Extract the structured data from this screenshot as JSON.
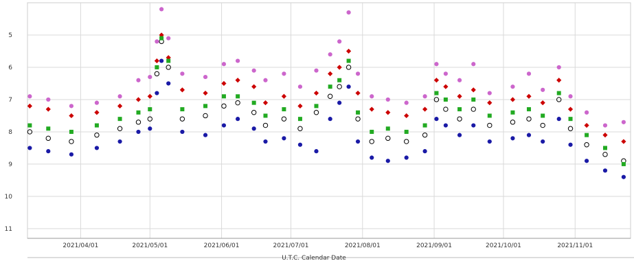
{
  "chart_data": {
    "type": "scatter",
    "title": "",
    "xlabel": "U.T.C. Calendar Date",
    "ylabel": "",
    "y_inverted": true,
    "ylim": [
      11.3,
      4.0
    ],
    "xlim": [
      "2021-03-09",
      "2021-11-25"
    ],
    "grid": true,
    "x_ticks": [
      "2021/04/01",
      "2021/05/01",
      "2021/06/01",
      "2021/07/01",
      "2021/08/01",
      "2021/09/01",
      "2021/10/01",
      "2021/11/01"
    ],
    "y_ticks": [
      5,
      6,
      7,
      8,
      9,
      10,
      11
    ],
    "series": [
      {
        "color": "#cc66cc",
        "marker": "circle-filled",
        "points": [
          [
            "2021-03-10",
            6.9
          ],
          [
            "2021-03-18",
            7.0
          ],
          [
            "2021-03-28",
            7.2
          ],
          [
            "2021-04-08",
            7.1
          ],
          [
            "2021-04-18",
            6.9
          ],
          [
            "2021-04-26",
            6.4
          ],
          [
            "2021-05-01",
            6.3
          ],
          [
            "2021-05-04",
            5.2
          ],
          [
            "2021-05-06",
            4.2
          ],
          [
            "2021-05-09",
            5.1
          ],
          [
            "2021-05-15",
            6.2
          ],
          [
            "2021-05-25",
            6.3
          ],
          [
            "2021-06-02",
            5.9
          ],
          [
            "2021-06-08",
            5.8
          ],
          [
            "2021-06-15",
            6.1
          ],
          [
            "2021-06-20",
            6.4
          ],
          [
            "2021-06-28",
            6.2
          ],
          [
            "2021-07-05",
            6.6
          ],
          [
            "2021-07-12",
            6.1
          ],
          [
            "2021-07-18",
            5.6
          ],
          [
            "2021-07-22",
            5.2
          ],
          [
            "2021-07-26",
            4.3
          ],
          [
            "2021-07-30",
            6.2
          ],
          [
            "2021-08-05",
            6.9
          ],
          [
            "2021-08-12",
            7.0
          ],
          [
            "2021-08-20",
            7.1
          ],
          [
            "2021-08-28",
            6.9
          ],
          [
            "2021-09-02",
            5.9
          ],
          [
            "2021-09-06",
            6.2
          ],
          [
            "2021-09-12",
            6.4
          ],
          [
            "2021-09-18",
            5.9
          ],
          [
            "2021-09-25",
            6.8
          ],
          [
            "2021-10-05",
            6.6
          ],
          [
            "2021-10-12",
            6.2
          ],
          [
            "2021-10-18",
            6.7
          ],
          [
            "2021-10-25",
            6.0
          ],
          [
            "2021-10-30",
            6.9
          ],
          [
            "2021-11-06",
            7.4
          ],
          [
            "2021-11-14",
            7.8
          ],
          [
            "2021-11-22",
            7.7
          ]
        ]
      },
      {
        "color": "#cc0000",
        "marker": "diamond",
        "points": [
          [
            "2021-03-10",
            7.2
          ],
          [
            "2021-03-18",
            7.3
          ],
          [
            "2021-03-28",
            7.5
          ],
          [
            "2021-04-08",
            7.4
          ],
          [
            "2021-04-18",
            7.2
          ],
          [
            "2021-04-26",
            7.0
          ],
          [
            "2021-05-01",
            6.9
          ],
          [
            "2021-05-04",
            5.8
          ],
          [
            "2021-05-06",
            5.0
          ],
          [
            "2021-05-09",
            5.7
          ],
          [
            "2021-05-15",
            6.7
          ],
          [
            "2021-05-25",
            6.8
          ],
          [
            "2021-06-02",
            6.5
          ],
          [
            "2021-06-08",
            6.4
          ],
          [
            "2021-06-15",
            6.6
          ],
          [
            "2021-06-20",
            7.1
          ],
          [
            "2021-06-28",
            6.9
          ],
          [
            "2021-07-05",
            7.2
          ],
          [
            "2021-07-12",
            6.8
          ],
          [
            "2021-07-18",
            6.2
          ],
          [
            "2021-07-22",
            6.0
          ],
          [
            "2021-07-26",
            5.5
          ],
          [
            "2021-07-30",
            6.8
          ],
          [
            "2021-08-05",
            7.3
          ],
          [
            "2021-08-12",
            7.4
          ],
          [
            "2021-08-20",
            7.5
          ],
          [
            "2021-08-28",
            7.3
          ],
          [
            "2021-09-02",
            6.4
          ],
          [
            "2021-09-06",
            6.6
          ],
          [
            "2021-09-12",
            6.9
          ],
          [
            "2021-09-18",
            6.7
          ],
          [
            "2021-09-25",
            7.1
          ],
          [
            "2021-10-05",
            7.0
          ],
          [
            "2021-10-12",
            6.9
          ],
          [
            "2021-10-18",
            7.1
          ],
          [
            "2021-10-25",
            6.4
          ],
          [
            "2021-10-30",
            7.3
          ],
          [
            "2021-11-06",
            7.8
          ],
          [
            "2021-11-14",
            8.1
          ],
          [
            "2021-11-22",
            8.3
          ]
        ]
      },
      {
        "color": "#000000",
        "marker": "circle-open",
        "points": [
          [
            "2021-03-10",
            8.0
          ],
          [
            "2021-03-18",
            8.2
          ],
          [
            "2021-03-28",
            8.3
          ],
          [
            "2021-04-08",
            8.1
          ],
          [
            "2021-04-18",
            7.9
          ],
          [
            "2021-04-26",
            7.7
          ],
          [
            "2021-05-01",
            7.6
          ],
          [
            "2021-05-04",
            6.2
          ],
          [
            "2021-05-06",
            5.2
          ],
          [
            "2021-05-09",
            6.0
          ],
          [
            "2021-05-15",
            7.6
          ],
          [
            "2021-05-25",
            7.5
          ],
          [
            "2021-06-02",
            7.2
          ],
          [
            "2021-06-08",
            7.1
          ],
          [
            "2021-06-15",
            7.4
          ],
          [
            "2021-06-20",
            7.8
          ],
          [
            "2021-06-28",
            7.6
          ],
          [
            "2021-07-05",
            7.9
          ],
          [
            "2021-07-12",
            7.4
          ],
          [
            "2021-07-18",
            6.9
          ],
          [
            "2021-07-22",
            6.6
          ],
          [
            "2021-07-26",
            6.0
          ],
          [
            "2021-07-30",
            7.6
          ],
          [
            "2021-08-05",
            8.3
          ],
          [
            "2021-08-12",
            8.2
          ],
          [
            "2021-08-20",
            8.3
          ],
          [
            "2021-08-28",
            8.1
          ],
          [
            "2021-09-02",
            7.0
          ],
          [
            "2021-09-06",
            7.3
          ],
          [
            "2021-09-12",
            7.6
          ],
          [
            "2021-09-18",
            7.3
          ],
          [
            "2021-09-25",
            7.8
          ],
          [
            "2021-10-05",
            7.7
          ],
          [
            "2021-10-12",
            7.6
          ],
          [
            "2021-10-18",
            7.8
          ],
          [
            "2021-10-25",
            7.0
          ],
          [
            "2021-10-30",
            7.9
          ],
          [
            "2021-11-06",
            8.4
          ],
          [
            "2021-11-14",
            8.7
          ],
          [
            "2021-11-22",
            8.9
          ]
        ]
      },
      {
        "color": "#22aa22",
        "marker": "square",
        "points": [
          [
            "2021-03-10",
            7.8
          ],
          [
            "2021-03-18",
            7.9
          ],
          [
            "2021-03-28",
            8.0
          ],
          [
            "2021-04-08",
            7.8
          ],
          [
            "2021-04-18",
            7.6
          ],
          [
            "2021-04-26",
            7.4
          ],
          [
            "2021-05-01",
            7.3
          ],
          [
            "2021-05-04",
            6.0
          ],
          [
            "2021-05-06",
            5.1
          ],
          [
            "2021-05-09",
            5.8
          ],
          [
            "2021-05-15",
            7.3
          ],
          [
            "2021-05-25",
            7.2
          ],
          [
            "2021-06-02",
            6.9
          ],
          [
            "2021-06-08",
            6.9
          ],
          [
            "2021-06-15",
            7.1
          ],
          [
            "2021-06-20",
            7.5
          ],
          [
            "2021-06-28",
            7.3
          ],
          [
            "2021-07-05",
            7.6
          ],
          [
            "2021-07-12",
            7.2
          ],
          [
            "2021-07-18",
            6.6
          ],
          [
            "2021-07-22",
            6.4
          ],
          [
            "2021-07-26",
            5.8
          ],
          [
            "2021-07-30",
            7.4
          ],
          [
            "2021-08-05",
            8.0
          ],
          [
            "2021-08-12",
            7.9
          ],
          [
            "2021-08-20",
            8.0
          ],
          [
            "2021-08-28",
            7.8
          ],
          [
            "2021-09-02",
            6.8
          ],
          [
            "2021-09-06",
            7.0
          ],
          [
            "2021-09-12",
            7.3
          ],
          [
            "2021-09-18",
            7.0
          ],
          [
            "2021-09-25",
            7.5
          ],
          [
            "2021-10-05",
            7.4
          ],
          [
            "2021-10-12",
            7.3
          ],
          [
            "2021-10-18",
            7.5
          ],
          [
            "2021-10-25",
            6.8
          ],
          [
            "2021-10-30",
            7.6
          ],
          [
            "2021-11-06",
            8.1
          ],
          [
            "2021-11-14",
            8.5
          ],
          [
            "2021-11-22",
            9.0
          ]
        ]
      },
      {
        "color": "#1a1aa6",
        "marker": "circle-filled",
        "points": [
          [
            "2021-03-10",
            8.5
          ],
          [
            "2021-03-18",
            8.6
          ],
          [
            "2021-03-28",
            8.7
          ],
          [
            "2021-04-08",
            8.5
          ],
          [
            "2021-04-18",
            8.3
          ],
          [
            "2021-04-26",
            8.0
          ],
          [
            "2021-05-01",
            7.9
          ],
          [
            "2021-05-04",
            6.8
          ],
          [
            "2021-05-06",
            5.8
          ],
          [
            "2021-05-09",
            6.5
          ],
          [
            "2021-05-15",
            8.0
          ],
          [
            "2021-05-25",
            8.1
          ],
          [
            "2021-06-02",
            7.8
          ],
          [
            "2021-06-08",
            7.6
          ],
          [
            "2021-06-15",
            7.9
          ],
          [
            "2021-06-20",
            8.3
          ],
          [
            "2021-06-28",
            8.2
          ],
          [
            "2021-07-05",
            8.4
          ],
          [
            "2021-07-12",
            8.6
          ],
          [
            "2021-07-18",
            7.6
          ],
          [
            "2021-07-22",
            7.1
          ],
          [
            "2021-07-26",
            6.6
          ],
          [
            "2021-07-30",
            8.3
          ],
          [
            "2021-08-05",
            8.8
          ],
          [
            "2021-08-12",
            8.9
          ],
          [
            "2021-08-20",
            8.8
          ],
          [
            "2021-08-28",
            8.6
          ],
          [
            "2021-09-02",
            7.6
          ],
          [
            "2021-09-06",
            7.8
          ],
          [
            "2021-09-12",
            8.1
          ],
          [
            "2021-09-18",
            7.8
          ],
          [
            "2021-09-25",
            8.3
          ],
          [
            "2021-10-05",
            8.2
          ],
          [
            "2021-10-12",
            8.1
          ],
          [
            "2021-10-18",
            8.3
          ],
          [
            "2021-10-25",
            7.6
          ],
          [
            "2021-10-30",
            8.4
          ],
          [
            "2021-11-06",
            8.9
          ],
          [
            "2021-11-14",
            9.2
          ],
          [
            "2021-11-22",
            9.4
          ]
        ]
      }
    ]
  }
}
